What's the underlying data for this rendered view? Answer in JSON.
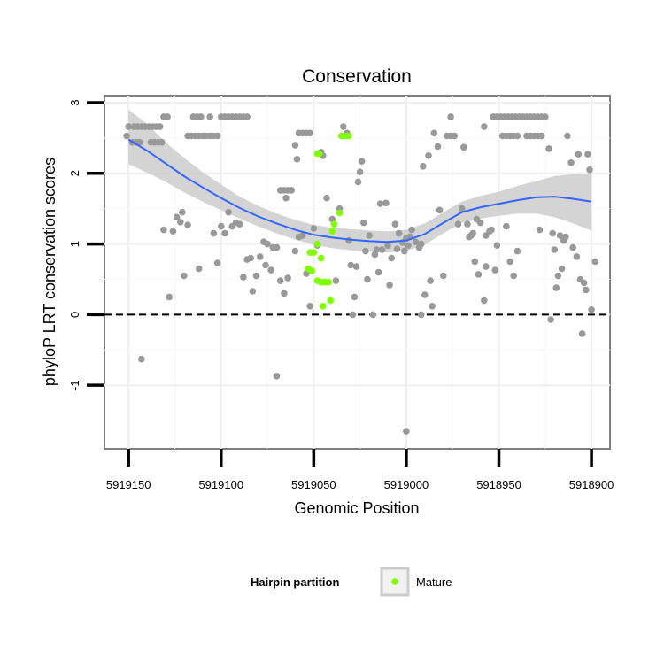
{
  "chart_data": {
    "type": "scatter",
    "title": "Conservation",
    "xlabel": "Genomic Position",
    "ylabel": "phyloP LRT conservation scores",
    "x_reversed": true,
    "xlim": [
      5919163,
      5918890
    ],
    "ylim": [
      -1.9,
      3.1
    ],
    "xticks": [
      5919150,
      5919100,
      5919050,
      5919000,
      5918950,
      5918900
    ],
    "xtick_labels": [
      "5919150",
      "5919100",
      "5919050",
      "5919000",
      "5918950",
      "5918900"
    ],
    "yticks": [
      -1,
      0,
      1,
      2,
      3
    ],
    "ytick_labels": [
      "-1",
      "0",
      "1",
      "2",
      "3"
    ],
    "reference_line": {
      "y": 0,
      "style": "dashed"
    },
    "grid": true,
    "legend": {
      "title": "Hairpin partition",
      "position": "bottom",
      "entries": [
        {
          "label": "Mature",
          "color": "#7FFF00"
        }
      ]
    },
    "colors": {
      "hairpin": "#999999",
      "mature": "#7FFF00",
      "smooth_line": "#3366FF",
      "ribbon": "#CCCCCC"
    },
    "series": [
      {
        "group": "hairpin",
        "points": [
          [
            5919151,
            2.53
          ],
          [
            5919148,
            2.44
          ],
          [
            5919146,
            2.44
          ],
          [
            5919144,
            2.44
          ],
          [
            5919150,
            2.66
          ],
          [
            5919147,
            2.66
          ],
          [
            5919145,
            2.66
          ],
          [
            5919143,
            2.66
          ],
          [
            5919141,
            2.66
          ],
          [
            5919139,
            2.66
          ],
          [
            5919137,
            2.66
          ],
          [
            5919135,
            2.66
          ],
          [
            5919133,
            2.66
          ],
          [
            5919138,
            2.44
          ],
          [
            5919136,
            2.44
          ],
          [
            5919134,
            2.44
          ],
          [
            5919132,
            2.44
          ],
          [
            5919143,
            -0.63
          ],
          [
            5919131,
            2.8
          ],
          [
            5919129,
            2.8
          ],
          [
            5919131,
            1.2
          ],
          [
            5919128,
            0.25
          ],
          [
            5919126,
            1.18
          ],
          [
            5919124,
            1.38
          ],
          [
            5919122,
            1.31
          ],
          [
            5919120,
            0.55
          ],
          [
            5919121,
            1.45
          ],
          [
            5919118,
            1.27
          ],
          [
            5919118,
            2.53
          ],
          [
            5919116,
            2.53
          ],
          [
            5919114,
            2.53
          ],
          [
            5919112,
            2.53
          ],
          [
            5919110,
            2.53
          ],
          [
            5919108,
            2.53
          ],
          [
            5919106,
            2.53
          ],
          [
            5919104,
            2.53
          ],
          [
            5919102,
            2.53
          ],
          [
            5919115,
            2.8
          ],
          [
            5919113,
            2.8
          ],
          [
            5919111,
            2.8
          ],
          [
            5919106,
            2.8
          ],
          [
            5919112,
            0.65
          ],
          [
            5919104,
            1.15
          ],
          [
            5919102,
            0.73
          ],
          [
            5919100,
            2.8
          ],
          [
            5919098,
            2.8
          ],
          [
            5919096,
            2.8
          ],
          [
            5919094,
            2.8
          ],
          [
            5919092,
            2.8
          ],
          [
            5919090,
            2.8
          ],
          [
            5919088,
            2.8
          ],
          [
            5919086,
            2.8
          ],
          [
            5919100,
            1.25
          ],
          [
            5919098,
            1.15
          ],
          [
            5919096,
            1.45
          ],
          [
            5919094,
            1.25
          ],
          [
            5919092,
            1.3
          ],
          [
            5919090,
            1.28
          ],
          [
            5919088,
            0.53
          ],
          [
            5919086,
            0.78
          ],
          [
            5919084,
            0.8
          ],
          [
            5919083,
            0.33
          ],
          [
            5919081,
            0.55
          ],
          [
            5919079,
            0.82
          ],
          [
            5919077,
            1.03
          ],
          [
            5919075,
            1.0
          ],
          [
            5919076,
            0.7
          ],
          [
            5919073,
            0.63
          ],
          [
            5919072,
            0.95
          ],
          [
            5919070,
            0.95
          ],
          [
            5919070,
            -0.87
          ],
          [
            5919068,
            0.48
          ],
          [
            5919066,
            0.3
          ],
          [
            5919065,
            1.65
          ],
          [
            5919068,
            1.76
          ],
          [
            5919066,
            1.76
          ],
          [
            5919064,
            1.76
          ],
          [
            5919062,
            1.76
          ],
          [
            5919064,
            0.52
          ],
          [
            5919060,
            2.4
          ],
          [
            5919059,
            2.2
          ],
          [
            5919058,
            2.57
          ],
          [
            5919056,
            2.57
          ],
          [
            5919054,
            2.57
          ],
          [
            5919052,
            2.57
          ],
          [
            5919060,
            0.9
          ],
          [
            5919058,
            1.1
          ],
          [
            5919056,
            1.12
          ],
          [
            5919054,
            0.58
          ],
          [
            5919052,
            0.12
          ],
          [
            5919050,
            1.22
          ],
          [
            5919048,
            0.98
          ],
          [
            5919046,
            2.3
          ],
          [
            5919045,
            2.25
          ],
          [
            5919043,
            1.65
          ],
          [
            5919040,
            1.35
          ],
          [
            5919038,
            0.48
          ],
          [
            5919036,
            1.5
          ],
          [
            5919034,
            2.66
          ],
          [
            5919032,
            2.57
          ],
          [
            5919031,
            1.05
          ],
          [
            5919030,
            0.7
          ],
          [
            5919029,
            0.0
          ],
          [
            5919028,
            0.25
          ],
          [
            5919027,
            0.68
          ],
          [
            5919026,
            1.88
          ],
          [
            5919025,
            2.02
          ],
          [
            5919024,
            2.17
          ],
          [
            5919023,
            1.3
          ],
          [
            5919022,
            0.9
          ],
          [
            5919021,
            0.5
          ],
          [
            5919020,
            1.12
          ],
          [
            5919018,
            0.0
          ],
          [
            5919017,
            0.85
          ],
          [
            5919016,
            0.92
          ],
          [
            5919015,
            0.6
          ],
          [
            5919014,
            1.57
          ],
          [
            5919013,
            0.92
          ],
          [
            5919011,
            1.58
          ],
          [
            5919010,
            0.98
          ],
          [
            5919009,
            0.42
          ],
          [
            5919008,
            0.8
          ],
          [
            5919006,
            1.28
          ],
          [
            5919005,
            0.93
          ],
          [
            5919004,
            1.15
          ],
          [
            5919002,
            1.02
          ],
          [
            5919001,
            0.9
          ],
          [
            5919000,
            1.08
          ],
          [
            5918999,
            0.98
          ],
          [
            5918998,
            1.1
          ],
          [
            5918997,
            1.2
          ],
          [
            5918995,
            1.03
          ],
          [
            5918993,
            0.95
          ],
          [
            5918992,
            1.0
          ],
          [
            5919000,
            -1.65
          ],
          [
            5918992,
            0.0
          ],
          [
            5918991,
            2.1
          ],
          [
            5918990,
            0.28
          ],
          [
            5918988,
            2.25
          ],
          [
            5918987,
            0.48
          ],
          [
            5918986,
            0.12
          ],
          [
            5918985,
            2.57
          ],
          [
            5918983,
            2.38
          ],
          [
            5918982,
            1.48
          ],
          [
            5918980,
            0.55
          ],
          [
            5918978,
            2.53
          ],
          [
            5918976,
            2.53
          ],
          [
            5918974,
            2.53
          ],
          [
            5918976,
            2.8
          ],
          [
            5918972,
            1.28
          ],
          [
            5918970,
            1.5
          ],
          [
            5918969,
            2.37
          ],
          [
            5918967,
            1.28
          ],
          [
            5918966,
            1.1
          ],
          [
            5918965,
            1.12
          ],
          [
            5918964,
            1.15
          ],
          [
            5918963,
            0.75
          ],
          [
            5918962,
            1.35
          ],
          [
            5918961,
            0.57
          ],
          [
            5918960,
            1.3
          ],
          [
            5918958,
            0.2
          ],
          [
            5918957,
            1.12
          ],
          [
            5918957,
            0.68
          ],
          [
            5918955,
            1.18
          ],
          [
            5918954,
            1.2
          ],
          [
            5918952,
            0.63
          ],
          [
            5918951,
            0.98
          ],
          [
            5918958,
            2.66
          ],
          [
            5918953,
            2.8
          ],
          [
            5918951,
            2.8
          ],
          [
            5918949,
            2.8
          ],
          [
            5918947,
            2.8
          ],
          [
            5918945,
            2.8
          ],
          [
            5918943,
            2.8
          ],
          [
            5918941,
            2.8
          ],
          [
            5918939,
            2.8
          ],
          [
            5918937,
            2.8
          ],
          [
            5918935,
            2.8
          ],
          [
            5918933,
            2.8
          ],
          [
            5918931,
            2.8
          ],
          [
            5918929,
            2.8
          ],
          [
            5918927,
            2.8
          ],
          [
            5918925,
            2.8
          ],
          [
            5918948,
            2.53
          ],
          [
            5918946,
            2.53
          ],
          [
            5918944,
            2.53
          ],
          [
            5918942,
            2.53
          ],
          [
            5918940,
            2.53
          ],
          [
            5918935,
            2.53
          ],
          [
            5918933,
            2.53
          ],
          [
            5918931,
            2.53
          ],
          [
            5918929,
            2.53
          ],
          [
            5918927,
            2.53
          ],
          [
            5918946,
            1.25
          ],
          [
            5918944,
            0.75
          ],
          [
            5918942,
            0.55
          ],
          [
            5918940,
            0.9
          ],
          [
            5918928,
            1.2
          ],
          [
            5918923,
            2.35
          ],
          [
            5918922,
            -0.07
          ],
          [
            5918921,
            1.15
          ],
          [
            5918920,
            0.92
          ],
          [
            5918919,
            0.38
          ],
          [
            5918918,
            0.55
          ],
          [
            5918917,
            1.12
          ],
          [
            5918916,
            0.65
          ],
          [
            5918915,
            1.05
          ],
          [
            5918914,
            1.1
          ],
          [
            5918913,
            2.53
          ],
          [
            5918911,
            2.15
          ],
          [
            5918910,
            0.95
          ],
          [
            5918908,
            0.82
          ],
          [
            5918907,
            2.27
          ],
          [
            5918906,
            0.5
          ],
          [
            5918905,
            -0.27
          ],
          [
            5918904,
            0.45
          ],
          [
            5918903,
            0.35
          ],
          [
            5918902,
            2.27
          ],
          [
            5918901,
            2.05
          ],
          [
            5918900,
            0.07
          ],
          [
            5918898,
            0.75
          ]
        ]
      },
      {
        "group": "mature",
        "points": [
          [
            5919048,
            2.28
          ],
          [
            5919047,
            2.28
          ],
          [
            5919035,
            2.53
          ],
          [
            5919033,
            2.53
          ],
          [
            5919031,
            2.53
          ],
          [
            5919036,
            1.44
          ],
          [
            5919039,
            1.28
          ],
          [
            5919040,
            1.18
          ],
          [
            5919048,
            1.0
          ],
          [
            5919052,
            0.88
          ],
          [
            5919050,
            0.88
          ],
          [
            5919053,
            0.65
          ],
          [
            5919051,
            0.62
          ],
          [
            5919046,
            0.8
          ],
          [
            5919048,
            0.48
          ],
          [
            5919046,
            0.46
          ],
          [
            5919044,
            0.46
          ],
          [
            5919042,
            0.46
          ],
          [
            5919041,
            0.2
          ],
          [
            5919045,
            0.12
          ]
        ]
      }
    ],
    "smooth": {
      "x": [
        5919150,
        5919140,
        5919130,
        5919120,
        5919110,
        5919100,
        5919090,
        5919080,
        5919070,
        5919060,
        5919050,
        5919040,
        5919030,
        5919020,
        5919010,
        5919000,
        5918990,
        5918980,
        5918970,
        5918960,
        5918950,
        5918940,
        5918930,
        5918920,
        5918910,
        5918900
      ],
      "y": [
        2.48,
        2.32,
        2.14,
        1.96,
        1.8,
        1.65,
        1.51,
        1.39,
        1.29,
        1.2,
        1.13,
        1.09,
        1.06,
        1.04,
        1.03,
        1.05,
        1.14,
        1.3,
        1.45,
        1.52,
        1.57,
        1.62,
        1.66,
        1.67,
        1.64,
        1.6
      ],
      "lower": [
        2.13,
        2.01,
        1.88,
        1.73,
        1.6,
        1.48,
        1.36,
        1.25,
        1.15,
        1.06,
        0.99,
        0.94,
        0.91,
        0.89,
        0.88,
        0.9,
        0.99,
        1.15,
        1.3,
        1.36,
        1.4,
        1.43,
        1.43,
        1.38,
        1.29,
        1.19
      ],
      "upper": [
        2.9,
        2.7,
        2.44,
        2.22,
        2.02,
        1.84,
        1.67,
        1.54,
        1.43,
        1.34,
        1.27,
        1.23,
        1.21,
        1.19,
        1.18,
        1.2,
        1.29,
        1.45,
        1.6,
        1.68,
        1.74,
        1.82,
        1.89,
        1.96,
        1.99,
        2.0
      ]
    }
  }
}
